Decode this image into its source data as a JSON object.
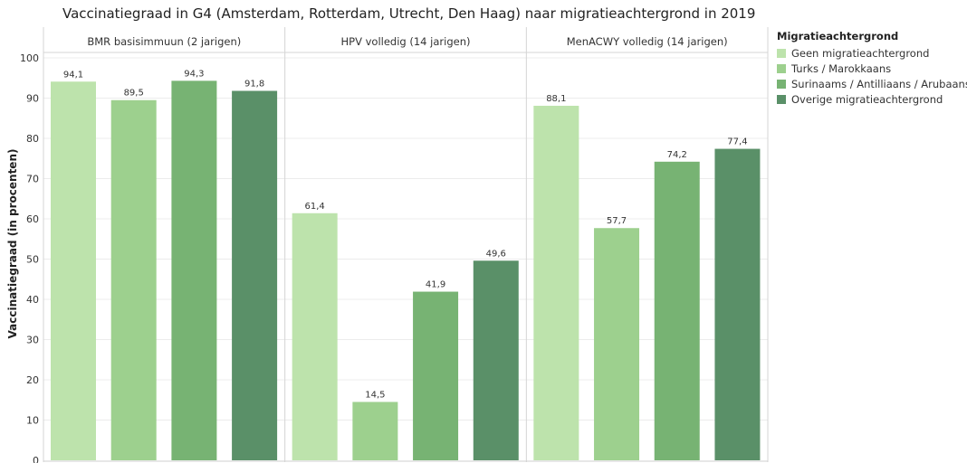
{
  "chart_data": {
    "type": "bar",
    "title": "Vaccinatiegraad in G4 (Amsterdam, Rotterdam, Utrecht, Den Haag) naar migratieachtergrond in 2019",
    "ylabel": "Vaccinatiegraad (in procenten)",
    "ylim": [
      0,
      100
    ],
    "yticks": [
      "0",
      "10",
      "20",
      "30",
      "40",
      "50",
      "60",
      "70",
      "80",
      "90",
      "100"
    ],
    "grid": true,
    "legend_position": "right",
    "legend_title": "Migratieachtergrond",
    "series": [
      {
        "name": "Geen migratieachtergrond",
        "color": "#bde3ac"
      },
      {
        "name": "Turks / Marokkaans",
        "color": "#9dd08e"
      },
      {
        "name": "Surinaams / Antilliaans / Arubaans",
        "color": "#77b373"
      },
      {
        "name": "Overige migratieachtergrond",
        "color": "#5a9068"
      }
    ],
    "panels": [
      {
        "title": "BMR basisimmuun (2 jarigen)",
        "values": [
          94.1,
          89.5,
          94.3,
          91.8
        ],
        "labels": [
          "94,1",
          "89,5",
          "94,3",
          "91,8"
        ]
      },
      {
        "title": "HPV volledig (14 jarigen)",
        "values": [
          61.4,
          14.5,
          41.9,
          49.6
        ],
        "labels": [
          "61,4",
          "14,5",
          "41,9",
          "49,6"
        ]
      },
      {
        "title": "MenACWY volledig (14 jarigen)",
        "values": [
          88.1,
          57.7,
          74.2,
          77.4
        ],
        "labels": [
          "88,1",
          "57,7",
          "74,2",
          "77,4"
        ]
      }
    ]
  }
}
